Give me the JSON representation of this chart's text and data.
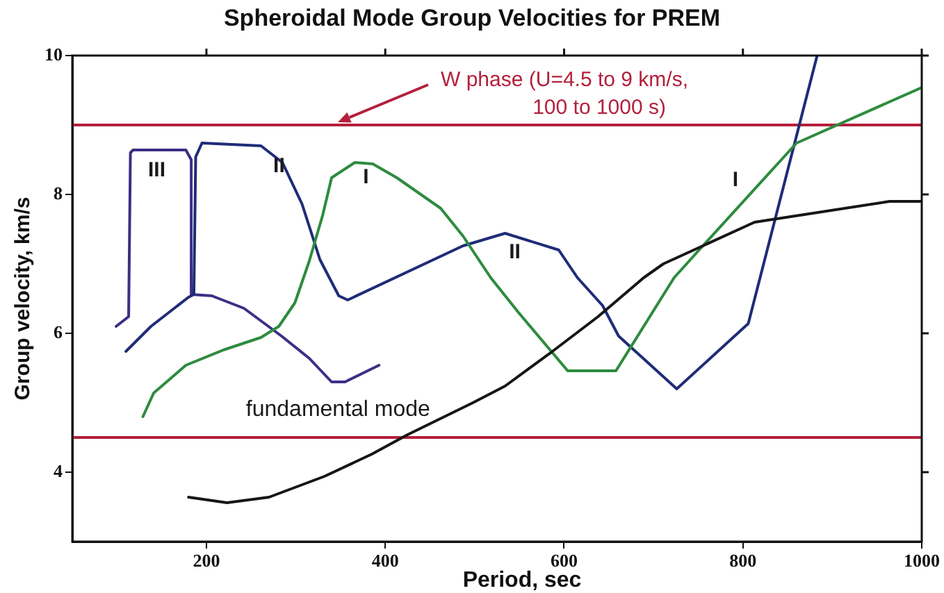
{
  "chart_data": {
    "type": "line",
    "title": "Spheroidal Mode Group Velocities for PREM",
    "xlabel": "Period, sec",
    "ylabel": "Group velocity, km/s",
    "xlim": [
      50,
      1000
    ],
    "xticks": [
      200,
      400,
      600,
      800,
      1000
    ],
    "ylim": [
      3,
      10
    ],
    "yticks": [
      4,
      6,
      8,
      10
    ],
    "series": [
      {
        "name": "fundamental mode",
        "color": "#161616",
        "x": [
          180,
          223,
          270,
          332,
          385,
          425,
          498,
          534,
          587,
          638,
          689,
          711,
          813,
          964,
          1000
        ],
        "values": [
          3.64,
          3.56,
          3.64,
          3.94,
          4.26,
          4.54,
          5.0,
          5.24,
          5.74,
          6.24,
          6.8,
          7.0,
          7.6,
          7.9,
          7.9
        ]
      },
      {
        "name": "I",
        "color": "#2e8b3f",
        "x": [
          129,
          141,
          177,
          219,
          261,
          281,
          299,
          315,
          330,
          340,
          366,
          386,
          413,
          462,
          487,
          518,
          549,
          604,
          658,
          723,
          751,
          860,
          1000
        ],
        "values": [
          4.8,
          5.14,
          5.54,
          5.76,
          5.94,
          6.1,
          6.44,
          7.04,
          7.7,
          8.24,
          8.46,
          8.44,
          8.24,
          7.8,
          7.4,
          6.8,
          6.3,
          5.46,
          5.46,
          6.8,
          7.2,
          8.74,
          9.54
        ]
      },
      {
        "name": "II",
        "color": "#1f2c78",
        "x": [
          110,
          138,
          164,
          180,
          186,
          188,
          195,
          261,
          285,
          307,
          327,
          348,
          358,
          487,
          534,
          594,
          615,
          643,
          661,
          726,
          806,
          883
        ],
        "values": [
          5.74,
          6.1,
          6.36,
          6.52,
          6.56,
          8.54,
          8.74,
          8.7,
          8.46,
          7.86,
          7.06,
          6.54,
          6.48,
          7.26,
          7.44,
          7.2,
          6.8,
          6.4,
          5.96,
          5.2,
          6.14,
          10.0
        ]
      },
      {
        "name": "III",
        "color": "#3b2f86",
        "x": [
          99,
          113,
          115,
          118,
          177,
          183,
          183,
          206,
          242,
          284,
          315,
          340,
          355,
          393
        ],
        "values": [
          6.1,
          6.24,
          8.6,
          8.64,
          8.64,
          8.5,
          6.56,
          6.54,
          6.36,
          5.96,
          5.64,
          5.3,
          5.3,
          5.54
        ]
      }
    ],
    "ref_lines": [
      {
        "axis": "y",
        "value": 9,
        "color": "#b3203c"
      },
      {
        "axis": "y",
        "value": 4.5,
        "color": "#b3203c"
      }
    ],
    "annotations": [
      "W phase (U=4.5 to 9 km/s,\n100 to 1000 s)"
    ]
  }
}
